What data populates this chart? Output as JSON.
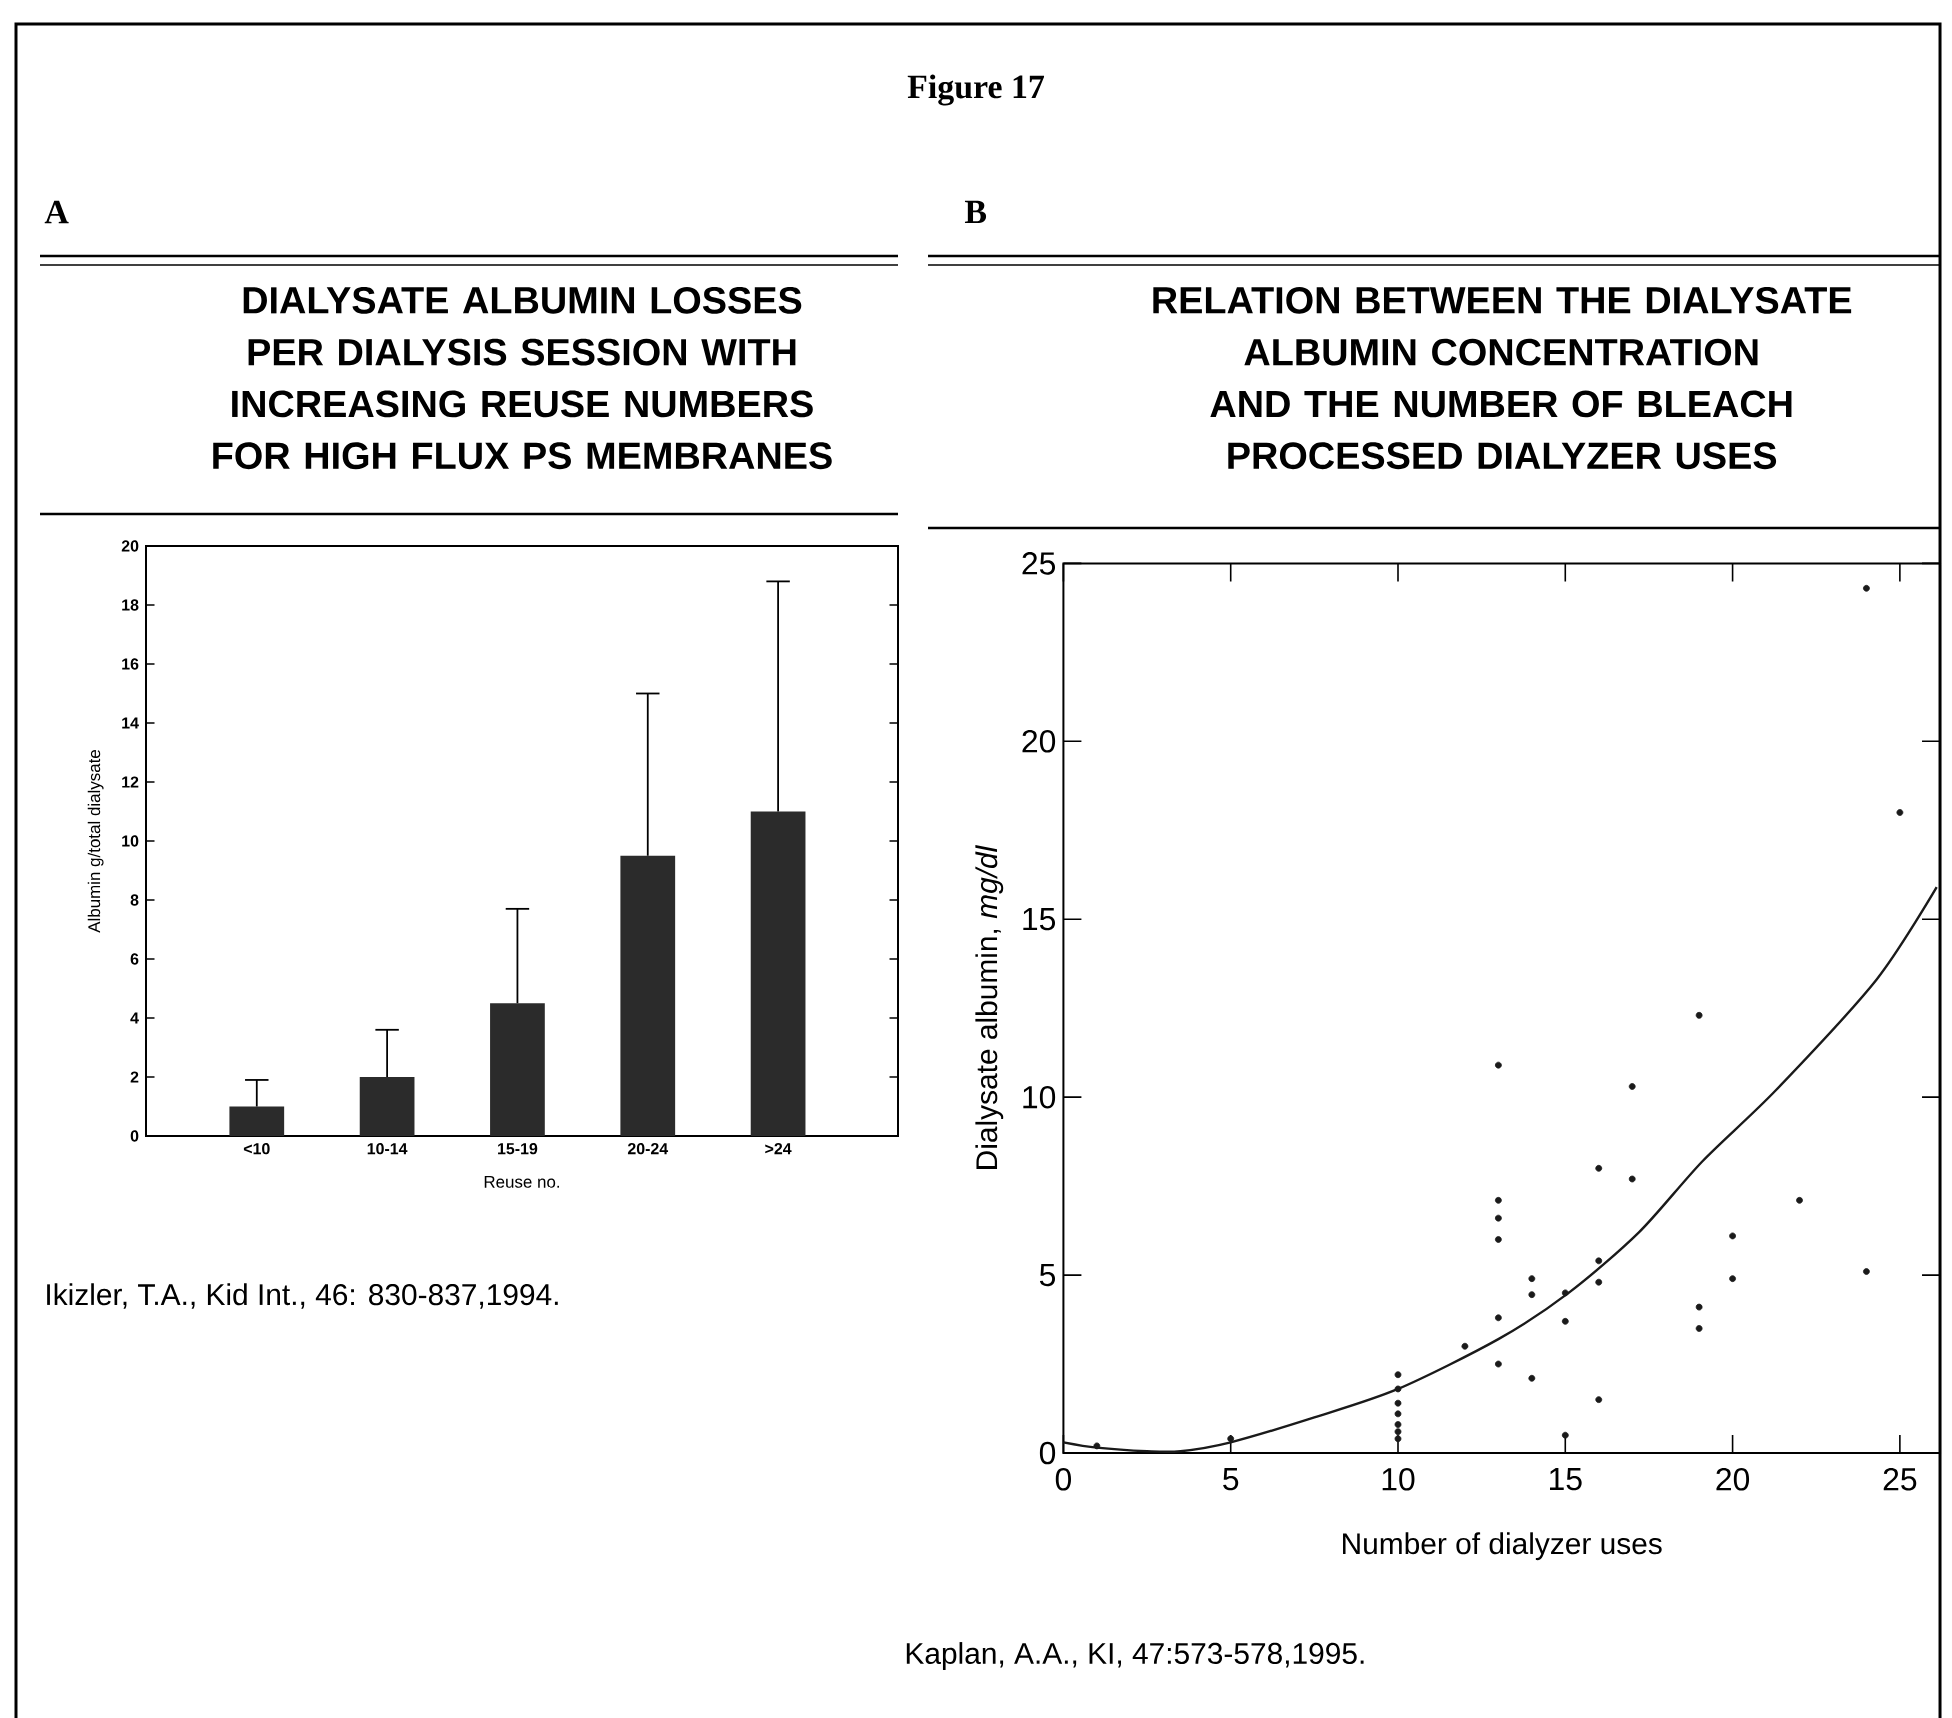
{
  "chart_data": [
    {
      "type": "bar",
      "title": "DIALYSATE ALBUMIN LOSSES PER DIALYSIS SESSION WITH INCREASING REUSE NUMBERS FOR HIGH FLUX PS MEMBRANES",
      "xlabel": "Reuse no.",
      "ylabel": "Albumin g/total dialysate",
      "categories": [
        "<10",
        "10-14",
        "15-19",
        "20-24",
        ">24"
      ],
      "values": [
        1.0,
        2.0,
        4.5,
        9.5,
        11.0
      ],
      "errors": [
        [
          1.0,
          1.9
        ],
        [
          2.0,
          3.6
        ],
        [
          4.5,
          7.7
        ],
        [
          9.5,
          15.0
        ],
        [
          11.0,
          18.8
        ]
      ],
      "color": "#2b2b2b",
      "ylim": [
        0,
        20
      ],
      "yticks": [
        0,
        2,
        4,
        6,
        8,
        10,
        12,
        14,
        16,
        18,
        20
      ],
      "annotations": [
        "Figure 17",
        "A",
        "Ikizler, T.A., Kid Int., 46: 830-837,1994."
      ]
    },
    {
      "type": "scatter",
      "title": "RELATION BETWEEN THE DIALYSATE ALBUMIN CONCENTRATION AND THE NUMBER OF BLEACH PROCESSED DIALYZER USES",
      "xlabel": "Number of dialyzer uses",
      "ylabel": "Dialysate albumin, *mg/dl*",
      "series": [
        {
          "type": "scatter",
          "marker": "circle",
          "color": "#1a1a1a",
          "x": [
            1,
            5,
            10,
            10,
            10,
            10,
            10,
            10,
            10,
            12,
            13,
            13,
            13,
            13,
            13,
            13,
            14,
            14,
            14,
            15,
            15,
            15,
            16,
            16,
            16,
            16,
            17,
            17,
            19,
            19,
            19,
            20,
            20,
            22,
            24,
            24,
            25
          ],
          "values": [
            0.2,
            0.4,
            2.2,
            1.8,
            1.4,
            1.1,
            0.8,
            0.6,
            0.4,
            3.0,
            10.9,
            7.1,
            6.6,
            6.0,
            3.8,
            2.5,
            4.9,
            4.45,
            2.1,
            4.5,
            3.7,
            0.5,
            8.0,
            5.4,
            4.8,
            1.5,
            10.3,
            7.7,
            12.3,
            4.1,
            3.5,
            6.1,
            4.9,
            7.1,
            24.3,
            5.1,
            18.0
          ]
        },
        {
          "type": "line",
          "marker": "none",
          "color": "#1a1a1a",
          "x": [
            0,
            1,
            2.5,
            3.5,
            5,
            7.5,
            10,
            13,
            15.1,
            17.2,
            19.1,
            21.3,
            24.3,
            26.1
          ],
          "values": [
            0.3,
            0.15,
            0.05,
            0.05,
            0.3,
            1.0,
            1.8,
            3.2,
            4.5,
            6.2,
            8.2,
            10.2,
            13.3,
            15.9
          ]
        }
      ],
      "xlim": [
        0,
        26.2
      ],
      "xticks": [
        0,
        5,
        10,
        15,
        20,
        25
      ],
      "ylim": [
        0,
        25
      ],
      "yticks": [
        0,
        5,
        10,
        15,
        20,
        25
      ],
      "annotations": [
        "B",
        "Kaplan, A.A., KI, 47:573-578,1995."
      ]
    }
  ]
}
